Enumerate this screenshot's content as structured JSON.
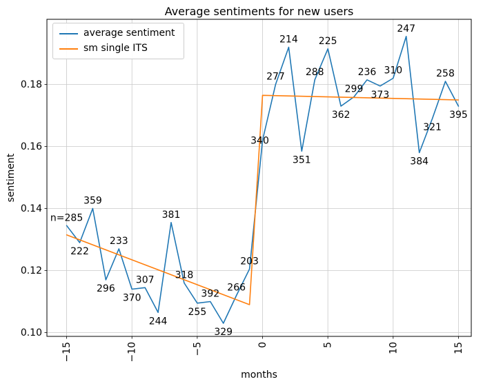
{
  "chart_data": {
    "type": "line",
    "title": "Average sentiments for new users",
    "xlabel": "months",
    "ylabel": "sentiment",
    "grid": true,
    "legend_position": "upper left",
    "xlim": [
      -16.51,
      15.98
    ],
    "ylim": [
      0.09878,
      0.201
    ],
    "x_ticks": [
      {
        "value": -15,
        "label": "−15"
      },
      {
        "value": -10,
        "label": "−10"
      },
      {
        "value": -5,
        "label": "−5"
      },
      {
        "value": 0,
        "label": "0"
      },
      {
        "value": 5,
        "label": "5"
      },
      {
        "value": 10,
        "label": "10"
      },
      {
        "value": 15,
        "label": "15"
      }
    ],
    "y_ticks": [
      {
        "value": 0.1,
        "label": "0.10"
      },
      {
        "value": 0.12,
        "label": "0.12"
      },
      {
        "value": 0.14,
        "label": "0.14"
      },
      {
        "value": 0.16,
        "label": "0.16"
      },
      {
        "value": 0.18,
        "label": "0.18"
      }
    ],
    "style": {
      "grid_color": "#c9c9c9",
      "spine_color": "#000000",
      "text_color": "#000000",
      "background": "#ffffff",
      "line_width": 1.6
    },
    "series": [
      {
        "name": "average sentiment",
        "color": "#1f77b4",
        "x": [
          -15,
          -14,
          -13,
          -12,
          -11,
          -10,
          -9,
          -8,
          -7,
          -6,
          -5,
          -4,
          -3,
          -2,
          -1,
          0,
          1,
          2,
          3,
          4,
          5,
          6,
          7,
          8,
          9,
          10,
          11,
          12,
          13,
          14,
          15
        ],
        "values": [
          0.1345,
          0.129,
          0.14,
          0.117,
          0.127,
          0.114,
          0.1145,
          0.1065,
          0.1355,
          0.116,
          0.1095,
          0.11,
          0.103,
          0.112,
          0.1205,
          0.162,
          0.18,
          0.192,
          0.1585,
          0.1815,
          0.1915,
          0.173,
          0.176,
          0.1815,
          0.1795,
          0.182,
          0.1955,
          0.158,
          0.169,
          0.181,
          0.173
        ],
        "point_labels": [
          "n=285",
          "222",
          "359",
          "296",
          "233",
          "370",
          "307",
          "244",
          "381",
          "318",
          "255",
          "392",
          "329",
          "266",
          "203",
          "340",
          "277",
          "214",
          "351",
          "288",
          "225",
          "362",
          "299",
          "236",
          "373",
          "310",
          "247",
          "384",
          "321",
          "258",
          "395"
        ],
        "label_placement": [
          "above",
          "below",
          "above",
          "below",
          "above",
          "below",
          "above",
          "below",
          "above",
          "above",
          "below",
          "above",
          "below",
          "above",
          "above",
          "left",
          "above",
          "above",
          "below",
          "above",
          "above",
          "below",
          "above",
          "above",
          "below",
          "above",
          "above",
          "below",
          "below",
          "above",
          "below"
        ]
      },
      {
        "name": "sm single ITS",
        "color": "#ff7f0e",
        "x": [
          -15,
          -1,
          0,
          15
        ],
        "values": [
          0.1315,
          0.109,
          0.1765,
          0.175
        ]
      }
    ]
  }
}
